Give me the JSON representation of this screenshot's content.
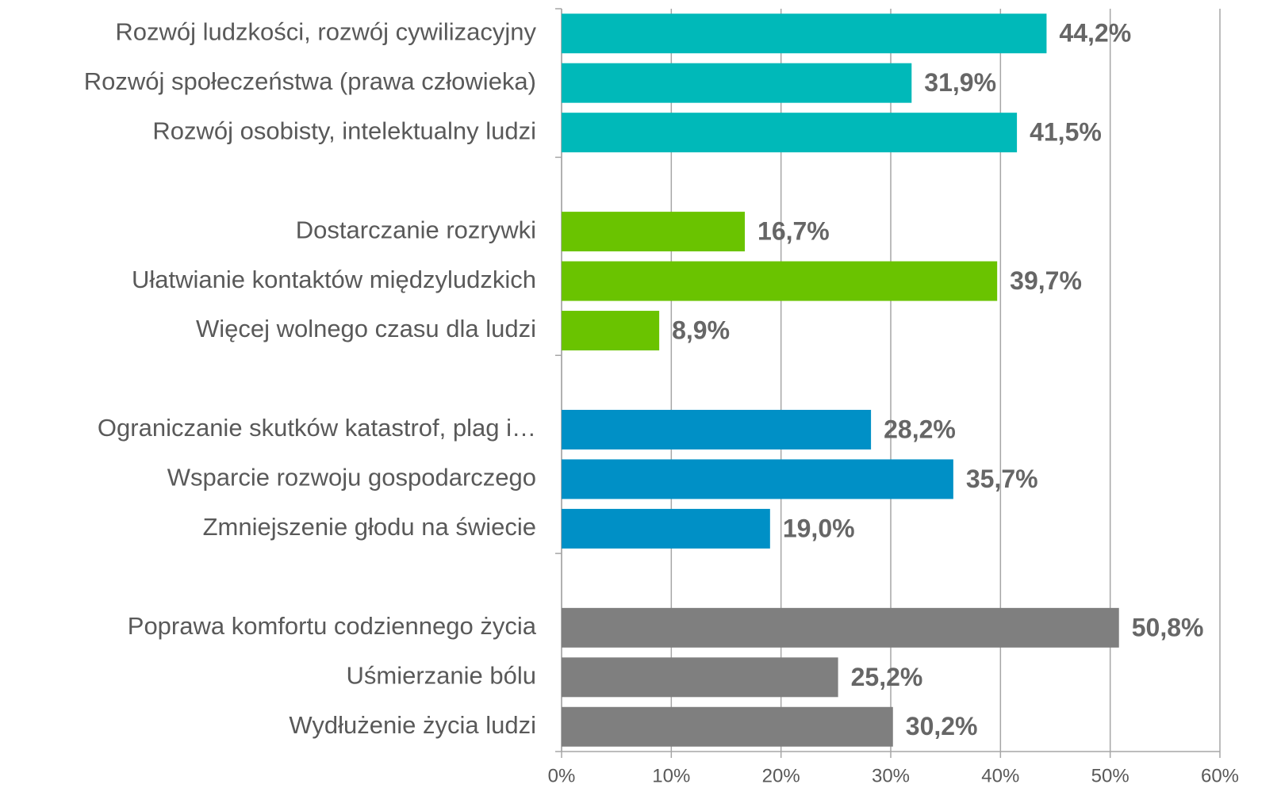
{
  "chart_data": {
    "type": "bar",
    "orientation": "horizontal",
    "categories": [
      "Rozwój ludzkości, rozwój cywilizacyjny",
      "Rozwój społeczeństwa (prawa człowieka)",
      "Rozwój osobisty, intelektualny ludzi",
      null,
      "Dostarczanie rozrywki",
      "Ułatwianie kontaktów międzyludzkich",
      "Więcej wolnego czasu dla ludzi",
      null,
      "Ograniczanie skutków katastrof, plag i…",
      "Wsparcie rozwoju gospodarczego",
      "Zmniejszenie głodu na świecie",
      null,
      "Poprawa komfortu codziennego życia",
      "Uśmierzanie bólu",
      "Wydłużenie życia ludzi"
    ],
    "values": [
      44.2,
      31.9,
      41.5,
      null,
      16.7,
      39.7,
      8.9,
      null,
      28.2,
      35.7,
      19.0,
      null,
      50.8,
      25.2,
      30.2
    ],
    "value_labels": [
      "44,2%",
      "31,9%",
      "41,5%",
      null,
      "16,7%",
      "39,7%",
      "8,9%",
      null,
      "28,2%",
      "35,7%",
      "19,0%",
      null,
      "50,8%",
      "25,2%",
      "30,2%"
    ],
    "colors": [
      "#00b9b9",
      "#00b9b9",
      "#00b9b9",
      null,
      "#6ac300",
      "#6ac300",
      "#6ac300",
      null,
      "#0090c6",
      "#0090c6",
      "#0090c6",
      null,
      "#7f7f7f",
      "#7f7f7f",
      "#7f7f7f"
    ],
    "xlim": [
      0,
      60
    ],
    "xticks": [
      {
        "value": 0,
        "label": "0%"
      },
      {
        "value": 10,
        "label": "10%"
      },
      {
        "value": 20,
        "label": "20%"
      },
      {
        "value": 30,
        "label": "30%"
      },
      {
        "value": 40,
        "label": "40%"
      },
      {
        "value": 50,
        "label": "50%"
      },
      {
        "value": 60,
        "label": "60%"
      }
    ],
    "grid": true
  }
}
